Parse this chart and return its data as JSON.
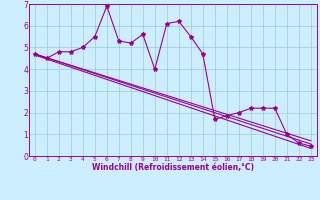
{
  "xlabel": "Windchill (Refroidissement éolien,°C)",
  "bg_color": "#cceeff",
  "line_color": "#990099",
  "grid_color": "#99cccc",
  "xlim": [
    -0.5,
    23.5
  ],
  "ylim": [
    0,
    7
  ],
  "xticks": [
    0,
    1,
    2,
    3,
    4,
    5,
    6,
    7,
    8,
    9,
    10,
    11,
    12,
    13,
    14,
    15,
    16,
    17,
    18,
    19,
    20,
    21,
    22,
    23
  ],
  "yticks": [
    0,
    1,
    2,
    3,
    4,
    5,
    6,
    7
  ],
  "zigzag_x": [
    0,
    1,
    2,
    3,
    4,
    5,
    6,
    7,
    8,
    9,
    10,
    11,
    12,
    13,
    14,
    15,
    16,
    17,
    18,
    19,
    20,
    21,
    22,
    23
  ],
  "zigzag_y": [
    4.7,
    4.5,
    4.8,
    4.8,
    5.0,
    5.5,
    6.9,
    5.3,
    5.2,
    5.6,
    4.0,
    6.1,
    6.2,
    5.5,
    4.7,
    1.7,
    1.85,
    2.0,
    2.2,
    2.2,
    2.2,
    1.0,
    0.6,
    0.45
  ],
  "line1_x": [
    0,
    23
  ],
  "line1_y": [
    4.7,
    0.55
  ],
  "line2_x": [
    0,
    23
  ],
  "line2_y": [
    4.7,
    0.7
  ],
  "line3_x": [
    0,
    23
  ],
  "line3_y": [
    4.65,
    0.35
  ]
}
